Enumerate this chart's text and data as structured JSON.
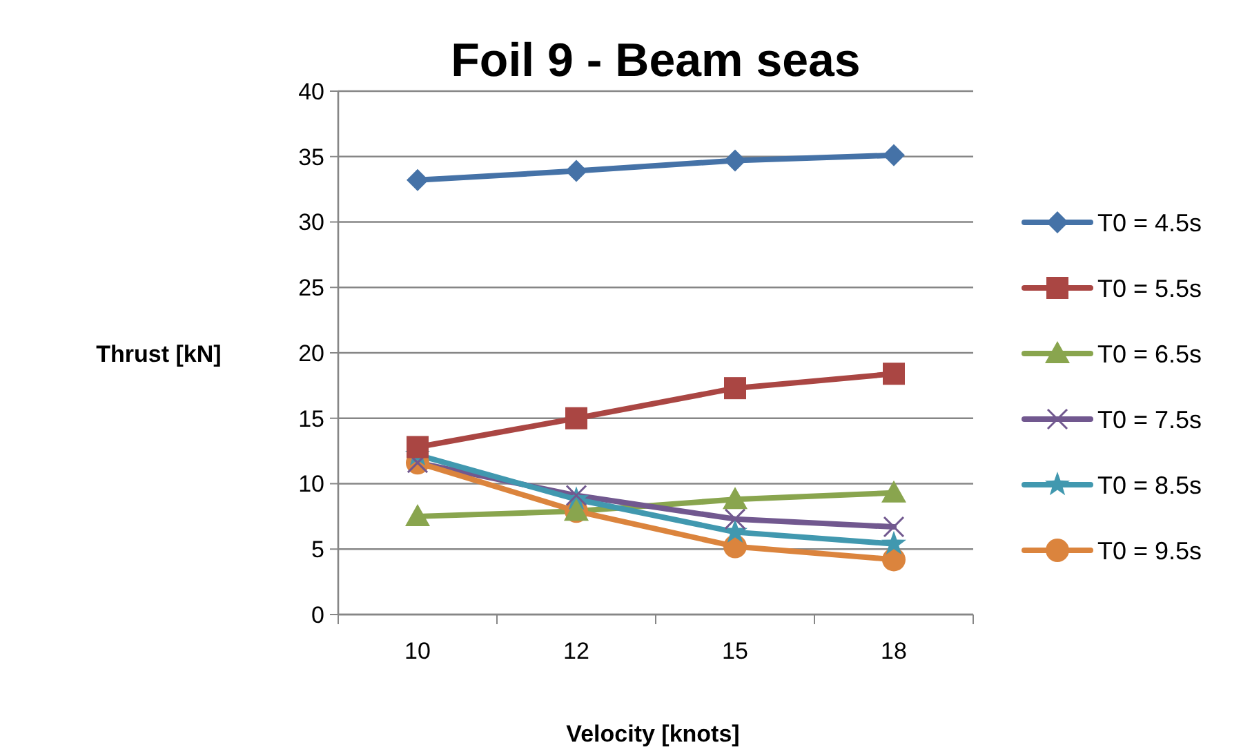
{
  "chart_data": {
    "type": "line",
    "title": "Foil 9 - Beam seas",
    "xlabel": "Velocity [knots]",
    "ylabel": "Thrust [kN]",
    "categories": [
      "10",
      "12",
      "15",
      "18"
    ],
    "ylim": [
      0,
      40
    ],
    "yticks": [
      0,
      5,
      10,
      15,
      20,
      25,
      30,
      35,
      40
    ],
    "grid": "y",
    "legend": "right",
    "line_style": "solid",
    "series": [
      {
        "name": "T0 = 4.5s",
        "color": "#4572a7",
        "marker": "diamond",
        "values": [
          33.2,
          33.9,
          34.7,
          35.1
        ]
      },
      {
        "name": "T0 = 5.5s",
        "color": "#aa4643",
        "marker": "square",
        "values": [
          12.8,
          15.0,
          17.3,
          18.4
        ]
      },
      {
        "name": "T0 = 6.5s",
        "color": "#89a54e",
        "marker": "triangle",
        "values": [
          7.5,
          7.9,
          8.8,
          9.3
        ]
      },
      {
        "name": "T0 = 7.5s",
        "color": "#71588f",
        "marker": "cross",
        "values": [
          11.6,
          9.1,
          7.3,
          6.7
        ]
      },
      {
        "name": "T0 = 8.5s",
        "color": "#4198af",
        "marker": "star",
        "values": [
          12.2,
          8.8,
          6.3,
          5.4
        ]
      },
      {
        "name": "T0 = 9.5s",
        "color": "#db843d",
        "marker": "circle",
        "values": [
          11.6,
          7.9,
          5.2,
          4.2
        ]
      }
    ]
  }
}
